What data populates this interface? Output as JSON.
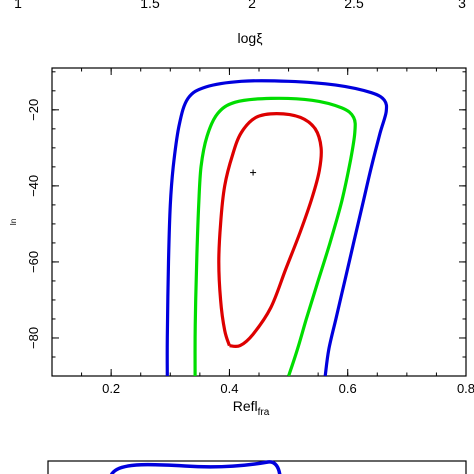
{
  "chart_data": [
    {
      "type": "line",
      "panel": "top (cropped)",
      "xlabel": "logξ",
      "x_tick_labels": [
        "1",
        "1.5",
        "2",
        "2.5",
        "3"
      ]
    },
    {
      "type": "line",
      "title": "",
      "xlabel_main": "Refl",
      "xlabel_sub": "fra",
      "ylabel": "In",
      "xlim": [
        0.1,
        0.8
      ],
      "ylim": [
        -90,
        -9
      ],
      "x_ticks": [
        0.2,
        0.4,
        0.6,
        0.8
      ],
      "x_tick_labels": [
        "0.2",
        "0.4",
        "0.6",
        "0.8"
      ],
      "y_ticks": [
        -20,
        -40,
        -60,
        -80
      ],
      "y_tick_labels": [
        "−20",
        "−40",
        "−60",
        "−80"
      ],
      "grid": false,
      "best_fit": {
        "x": 0.44,
        "y": -36.5,
        "marker": "+"
      },
      "series": [
        {
          "color": "#0000dd",
          "points": [
            [
              0.295,
              -90
            ],
            [
              0.295,
              -80
            ],
            [
              0.297,
              -60
            ],
            [
              0.3,
              -45
            ],
            [
              0.305,
              -35
            ],
            [
              0.315,
              -24
            ],
            [
              0.33,
              -17
            ],
            [
              0.36,
              -14
            ],
            [
              0.42,
              -12.5
            ],
            [
              0.5,
              -12.5
            ],
            [
              0.58,
              -13.5
            ],
            [
              0.64,
              -15.5
            ],
            [
              0.662,
              -17.5
            ],
            [
              0.665,
              -20.5
            ],
            [
              0.655,
              -26
            ],
            [
              0.64,
              -35
            ],
            [
              0.625,
              -45
            ],
            [
              0.61,
              -55
            ],
            [
              0.595,
              -65
            ],
            [
              0.58,
              -75
            ],
            [
              0.568,
              -83
            ],
            [
              0.562,
              -90
            ]
          ]
        },
        {
          "color": "#00dd00",
          "points": [
            [
              0.342,
              -90
            ],
            [
              0.342,
              -80
            ],
            [
              0.343,
              -70
            ],
            [
              0.345,
              -58
            ],
            [
              0.348,
              -45
            ],
            [
              0.352,
              -35
            ],
            [
              0.362,
              -27
            ],
            [
              0.38,
              -21
            ],
            [
              0.41,
              -18
            ],
            [
              0.47,
              -17
            ],
            [
              0.54,
              -17.5
            ],
            [
              0.59,
              -19.5
            ],
            [
              0.61,
              -22
            ],
            [
              0.612,
              -26
            ],
            [
              0.605,
              -33
            ],
            [
              0.59,
              -44
            ],
            [
              0.57,
              -55
            ],
            [
              0.55,
              -65
            ],
            [
              0.53,
              -75
            ],
            [
              0.515,
              -83
            ],
            [
              0.5,
              -90
            ]
          ]
        },
        {
          "color": "#dd0000",
          "points": [
            [
              0.4,
              -82
            ],
            [
              0.392,
              -78
            ],
            [
              0.385,
              -70
            ],
            [
              0.382,
              -60
            ],
            [
              0.385,
              -50
            ],
            [
              0.392,
              -40
            ],
            [
              0.405,
              -32
            ],
            [
              0.42,
              -26
            ],
            [
              0.445,
              -22
            ],
            [
              0.48,
              -21
            ],
            [
              0.52,
              -22
            ],
            [
              0.545,
              -25
            ],
            [
              0.555,
              -30
            ],
            [
              0.552,
              -36
            ],
            [
              0.54,
              -43
            ],
            [
              0.52,
              -52
            ],
            [
              0.495,
              -62
            ],
            [
              0.47,
              -72
            ],
            [
              0.44,
              -79
            ],
            [
              0.418,
              -82
            ],
            [
              0.4,
              -82
            ]
          ]
        }
      ]
    },
    {
      "type": "line",
      "panel": "bottom (cropped)",
      "series": [
        {
          "color": "#0000dd",
          "points": []
        }
      ]
    }
  ]
}
